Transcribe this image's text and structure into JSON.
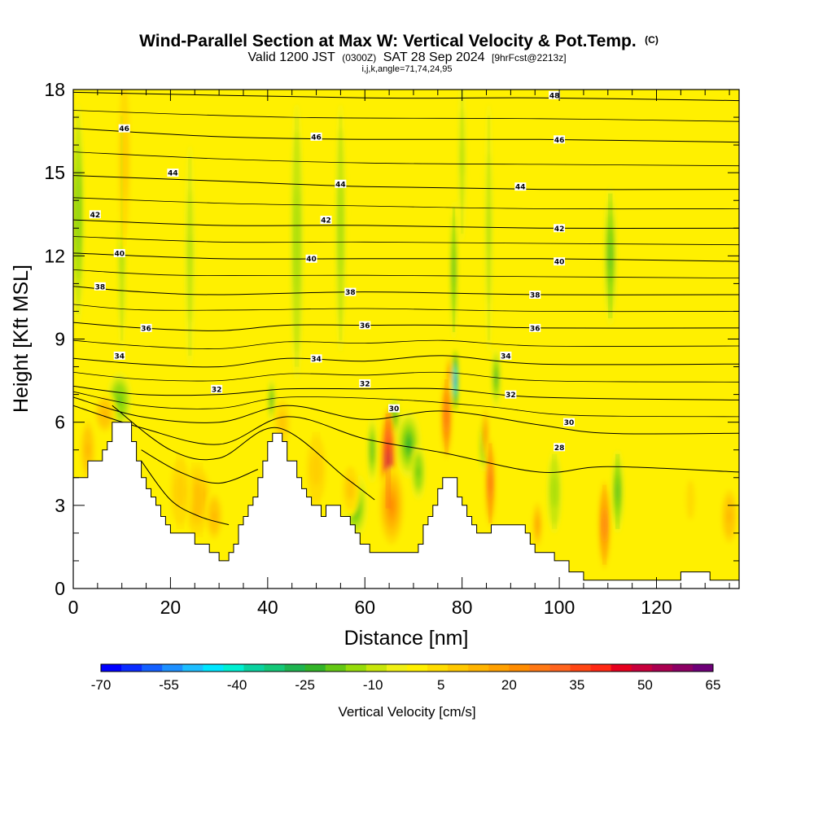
{
  "header": {
    "title": "Wind-Parallel Section at Max W: Vertical Velocity & Pot.Temp.",
    "copyright": "(C)",
    "valid_prefix": "Valid 1200 JST",
    "valid_utc": "(0300Z)",
    "valid_date": "SAT 28 Sep 2024",
    "forecast": "[9hrFcst@2213z]",
    "indices": "i,j,k,angle=71,74,24,95"
  },
  "colorbar": {
    "title": "Vertical Velocity [cm/s]",
    "min": -70,
    "max": 65,
    "step": 5,
    "labels": [
      "-70",
      "-55",
      "-40",
      "-25",
      "-10",
      "5",
      "20",
      "35",
      "50",
      "65"
    ],
    "colors": [
      "#0000ff",
      "#0a2cff",
      "#1460ff",
      "#1e90ff",
      "#1ebeff",
      "#00e6ff",
      "#00f0d2",
      "#0ad2a0",
      "#14c878",
      "#1eb450",
      "#32b428",
      "#64c814",
      "#96dc0a",
      "#c8e60a",
      "#f0f014",
      "#fff000",
      "#ffdc00",
      "#ffc800",
      "#ffb400",
      "#ffa000",
      "#ff8c00",
      "#ff7814",
      "#ff641e",
      "#ff4614",
      "#ff2814",
      "#e6001e",
      "#c8003c",
      "#aa0050",
      "#8c0064",
      "#6e0078"
    ]
  },
  "chart_data": {
    "type": "heatmap",
    "title": "Wind-Parallel Section at Max W: Vertical Velocity & Pot.Temp.",
    "xlabel": "Distance [nm]",
    "ylabel": "Height [Kft MSL]",
    "xlim": [
      0,
      137
    ],
    "ylim": [
      0,
      18
    ],
    "x_major_ticks": [
      0,
      20,
      40,
      60,
      80,
      100,
      120
    ],
    "x_minor_step": 5,
    "y_major_ticks": [
      0,
      3,
      6,
      9,
      12,
      15,
      18
    ],
    "y_minor_step": 1,
    "field": "Vertical Velocity [cm/s]",
    "background_value": 5,
    "terrain": [
      [
        0,
        4.0
      ],
      [
        2,
        4.0
      ],
      [
        3,
        4.6
      ],
      [
        5,
        4.6
      ],
      [
        6,
        5.0
      ],
      [
        7,
        5.3
      ],
      [
        8,
        6.0
      ],
      [
        11,
        6.0
      ],
      [
        12,
        5.3
      ],
      [
        13,
        4.6
      ],
      [
        14,
        4.0
      ],
      [
        15,
        3.6
      ],
      [
        16,
        3.3
      ],
      [
        17,
        3.0
      ],
      [
        18,
        2.6
      ],
      [
        19,
        2.3
      ],
      [
        20,
        2.0
      ],
      [
        24,
        2.0
      ],
      [
        25,
        1.6
      ],
      [
        27,
        1.6
      ],
      [
        28,
        1.3
      ],
      [
        29,
        1.3
      ],
      [
        30,
        1.0
      ],
      [
        31,
        1.0
      ],
      [
        32,
        1.3
      ],
      [
        33,
        1.6
      ],
      [
        34,
        2.3
      ],
      [
        35,
        2.6
      ],
      [
        36,
        3.0
      ],
      [
        37,
        3.3
      ],
      [
        38,
        4.0
      ],
      [
        39,
        4.6
      ],
      [
        40,
        5.3
      ],
      [
        41,
        5.6
      ],
      [
        42,
        5.6
      ],
      [
        43,
        5.3
      ],
      [
        44,
        4.6
      ],
      [
        46,
        4.0
      ],
      [
        47,
        3.6
      ],
      [
        48,
        3.3
      ],
      [
        49,
        3.0
      ],
      [
        50,
        3.0
      ],
      [
        51,
        2.6
      ],
      [
        52,
        3.0
      ],
      [
        54,
        3.0
      ],
      [
        55,
        2.6
      ],
      [
        57,
        2.3
      ],
      [
        58,
        2.0
      ],
      [
        59,
        1.6
      ],
      [
        60,
        1.6
      ],
      [
        61,
        1.3
      ],
      [
        70,
        1.3
      ],
      [
        71,
        1.6
      ],
      [
        72,
        2.3
      ],
      [
        73,
        2.6
      ],
      [
        74,
        3.0
      ],
      [
        75,
        3.6
      ],
      [
        76,
        4.0
      ],
      [
        78,
        4.0
      ],
      [
        79,
        3.3
      ],
      [
        80,
        3.0
      ],
      [
        81,
        2.6
      ],
      [
        82,
        2.3
      ],
      [
        83,
        2.0
      ],
      [
        85,
        2.0
      ],
      [
        86,
        2.3
      ],
      [
        90,
        2.3
      ],
      [
        93,
        2.0
      ],
      [
        94,
        1.6
      ],
      [
        95,
        1.3
      ],
      [
        97,
        1.3
      ],
      [
        99,
        1.0
      ],
      [
        100,
        1.0
      ],
      [
        102,
        0.6
      ],
      [
        104,
        0.6
      ],
      [
        105,
        0.3
      ],
      [
        124,
        0.3
      ],
      [
        125,
        0.6
      ],
      [
        130,
        0.6
      ],
      [
        131,
        0.3
      ],
      [
        137,
        0.3
      ]
    ],
    "updrafts": [
      {
        "x": 3,
        "y": 5.0,
        "dx": 1.8,
        "dy": 1.3,
        "value": 22
      },
      {
        "x": 6.5,
        "y": 6.3,
        "dx": 2.4,
        "dy": 0.8,
        "value": 22
      },
      {
        "x": 10.5,
        "y": 15.5,
        "dx": 1.5,
        "dy": 3.5,
        "value": 18
      },
      {
        "x": 25.5,
        "y": 3.2,
        "dx": 3.5,
        "dy": 1.5,
        "value": 24
      },
      {
        "x": 22,
        "y": 3.5,
        "dx": 2.5,
        "dy": 1.5,
        "value": 18
      },
      {
        "x": 29,
        "y": 2.6,
        "dx": 2.0,
        "dy": 1.0,
        "value": 22
      },
      {
        "x": 43,
        "y": 6.0,
        "dx": 2.0,
        "dy": 1.0,
        "value": 18
      },
      {
        "x": 50,
        "y": 4.3,
        "dx": 2.5,
        "dy": 1.5,
        "value": 18
      },
      {
        "x": 57,
        "y": 3.6,
        "dx": 2.0,
        "dy": 1.0,
        "value": 18
      },
      {
        "x": 64.8,
        "y": 4.6,
        "dx": 1.6,
        "dy": 1.9,
        "value": 68
      },
      {
        "x": 65.5,
        "y": 3.0,
        "dx": 2.5,
        "dy": 1.4,
        "value": 32
      },
      {
        "x": 76.8,
        "y": 6.2,
        "dx": 1.2,
        "dy": 1.5,
        "value": 48
      },
      {
        "x": 77.3,
        "y": 7.8,
        "dx": 0.5,
        "dy": 0.6,
        "value": 38
      },
      {
        "x": 85.8,
        "y": 3.8,
        "dx": 1.1,
        "dy": 1.6,
        "value": 46
      },
      {
        "x": 84.8,
        "y": 5.6,
        "dx": 0.7,
        "dy": 0.9,
        "value": 32
      },
      {
        "x": 95.5,
        "y": 2.3,
        "dx": 1.3,
        "dy": 1.0,
        "value": 26
      },
      {
        "x": 109.3,
        "y": 2.3,
        "dx": 1.3,
        "dy": 1.6,
        "value": 44
      },
      {
        "x": 135,
        "y": 2.6,
        "dx": 2.0,
        "dy": 1.2,
        "value": 22
      },
      {
        "x": 127,
        "y": 3.2,
        "dx": 1.5,
        "dy": 1.2,
        "value": 14
      }
    ],
    "downdrafts": [
      {
        "x": 1,
        "y": 13.5,
        "dx": 1.2,
        "dy": 4.0,
        "value": -14
      },
      {
        "x": 9.5,
        "y": 6.8,
        "dx": 2.5,
        "dy": 1.0,
        "value": -12
      },
      {
        "x": 10,
        "y": 13.0,
        "dx": 0.8,
        "dy": 4.5,
        "value": -8
      },
      {
        "x": 24,
        "y": 12.0,
        "dx": 1.0,
        "dy": 4.0,
        "value": -6
      },
      {
        "x": 40.8,
        "y": 6.8,
        "dx": 0.8,
        "dy": 0.8,
        "value": -18
      },
      {
        "x": 46,
        "y": 12.5,
        "dx": 1.3,
        "dy": 5.0,
        "value": -10
      },
      {
        "x": 55,
        "y": 13.0,
        "dx": 1.0,
        "dy": 4.5,
        "value": -8
      },
      {
        "x": 58,
        "y": 3.0,
        "dx": 2.5,
        "dy": 1.2,
        "value": -18
      },
      {
        "x": 61.5,
        "y": 5.0,
        "dx": 1.0,
        "dy": 1.2,
        "value": -15
      },
      {
        "x": 66,
        "y": 6.2,
        "dx": 1.3,
        "dy": 0.7,
        "value": -14
      },
      {
        "x": 69,
        "y": 5.2,
        "dx": 2.5,
        "dy": 1.2,
        "value": -18
      },
      {
        "x": 71,
        "y": 4.2,
        "dx": 1.5,
        "dy": 1.0,
        "value": -12
      },
      {
        "x": 78.6,
        "y": 7.5,
        "dx": 0.6,
        "dy": 1.1,
        "value": -55
      },
      {
        "x": 78.3,
        "y": 11.5,
        "dx": 0.8,
        "dy": 2.5,
        "value": -16
      },
      {
        "x": 80,
        "y": 15.5,
        "dx": 0.8,
        "dy": 3.0,
        "value": -6
      },
      {
        "x": 84.3,
        "y": 5.2,
        "dx": 0.8,
        "dy": 1.0,
        "value": -20
      },
      {
        "x": 87,
        "y": 7.6,
        "dx": 1.0,
        "dy": 1.1,
        "value": -16
      },
      {
        "x": 85.5,
        "y": 13.0,
        "dx": 0.8,
        "dy": 4.5,
        "value": -6
      },
      {
        "x": 110.5,
        "y": 12.0,
        "dx": 1.3,
        "dy": 2.5,
        "value": -16
      },
      {
        "x": 112,
        "y": 3.5,
        "dx": 1.3,
        "dy": 1.5,
        "value": -16
      },
      {
        "x": 99,
        "y": 3.5,
        "dx": 1.5,
        "dy": 1.5,
        "value": -10
      }
    ],
    "theta_contours": {
      "levels": [
        22,
        24,
        26,
        28,
        30,
        32,
        34,
        36,
        38,
        40,
        42,
        44,
        46,
        48
      ],
      "series": [
        {
          "level": 22,
          "points": [
            [
              14,
              4.6
            ],
            [
              20,
              3.2
            ],
            [
              26,
              2.6
            ],
            [
              32,
              2.3
            ]
          ]
        },
        {
          "level": 24,
          "points": [
            [
              14,
              5.0
            ],
            [
              22,
              4.2
            ],
            [
              30,
              3.8
            ],
            [
              38,
              4.3
            ]
          ]
        },
        {
          "level": 26,
          "points": [
            [
              8,
              6.6
            ],
            [
              20,
              5.0
            ],
            [
              30,
              4.7
            ],
            [
              42,
              5.8
            ],
            [
              56,
              4.0
            ],
            [
              62,
              3.2
            ]
          ]
        },
        {
          "level": 28,
          "points": [
            [
              0,
              6.6
            ],
            [
              14,
              5.8
            ],
            [
              30,
              5.2
            ],
            [
              44,
              6.2
            ],
            [
              60,
              5.4
            ],
            [
              76,
              4.9
            ],
            [
              96,
              4.2
            ],
            [
              110,
              4.4
            ],
            [
              137,
              4.2
            ]
          ]
        },
        {
          "level": 30,
          "points": [
            [
              0,
              6.9
            ],
            [
              14,
              6.2
            ],
            [
              30,
              6.0
            ],
            [
              44,
              6.6
            ],
            [
              60,
              6.1
            ],
            [
              76,
              6.4
            ],
            [
              96,
              5.9
            ],
            [
              110,
              5.6
            ],
            [
              137,
              5.6
            ]
          ]
        },
        {
          "level": 32,
          "points": [
            [
              0,
              7.3
            ],
            [
              14,
              7.0
            ],
            [
              30,
              7.0
            ],
            [
              44,
              7.2
            ],
            [
              60,
              7.2
            ],
            [
              76,
              7.2
            ],
            [
              96,
              6.9
            ],
            [
              137,
              6.8
            ]
          ]
        },
        {
          "level": 34,
          "points": [
            [
              0,
              8.3
            ],
            [
              14,
              8.1
            ],
            [
              30,
              8.0
            ],
            [
              44,
              8.3
            ],
            [
              60,
              8.2
            ],
            [
              76,
              8.4
            ],
            [
              96,
              8.1
            ],
            [
              137,
              8.1
            ]
          ]
        },
        {
          "level": 36,
          "points": [
            [
              0,
              9.6
            ],
            [
              14,
              9.4
            ],
            [
              30,
              9.3
            ],
            [
              44,
              9.5
            ],
            [
              60,
              9.5
            ],
            [
              76,
              9.5
            ],
            [
              96,
              9.4
            ],
            [
              137,
              9.4
            ]
          ]
        },
        {
          "level": 38,
          "points": [
            [
              0,
              10.9
            ],
            [
              14,
              10.7
            ],
            [
              30,
              10.6
            ],
            [
              60,
              10.7
            ],
            [
              96,
              10.6
            ],
            [
              137,
              10.6
            ]
          ]
        },
        {
          "level": 40,
          "points": [
            [
              0,
              12.1
            ],
            [
              30,
              11.9
            ],
            [
              60,
              11.9
            ],
            [
              96,
              11.9
            ],
            [
              137,
              11.8
            ]
          ]
        },
        {
          "level": 42,
          "points": [
            [
              0,
              13.3
            ],
            [
              30,
              13.1
            ],
            [
              60,
              13.1
            ],
            [
              96,
              13.0
            ],
            [
              137,
              13.0
            ]
          ]
        },
        {
          "level": 44,
          "points": [
            [
              0,
              14.9
            ],
            [
              30,
              14.7
            ],
            [
              60,
              14.5
            ],
            [
              96,
              14.4
            ],
            [
              137,
              14.4
            ]
          ]
        },
        {
          "level": 46,
          "points": [
            [
              0,
              16.6
            ],
            [
              30,
              16.3
            ],
            [
              60,
              16.2
            ],
            [
              96,
              16.2
            ],
            [
              137,
              16.1
            ]
          ]
        },
        {
          "level": 48,
          "points": [
            [
              0,
              17.9
            ],
            [
              60,
              17.7
            ],
            [
              96,
              17.7
            ],
            [
              137,
              17.6
            ]
          ]
        }
      ],
      "labels": [
        {
          "text": "46",
          "x": 10.5,
          "y": 16.6
        },
        {
          "text": "46",
          "x": 50,
          "y": 16.3
        },
        {
          "text": "46",
          "x": 100,
          "y": 16.2
        },
        {
          "text": "48",
          "x": 99,
          "y": 17.8
        },
        {
          "text": "44",
          "x": 20.5,
          "y": 15.0
        },
        {
          "text": "44",
          "x": 55,
          "y": 14.6
        },
        {
          "text": "44",
          "x": 92,
          "y": 14.5
        },
        {
          "text": "42",
          "x": 4.5,
          "y": 13.5
        },
        {
          "text": "42",
          "x": 52,
          "y": 13.3
        },
        {
          "text": "42",
          "x": 100,
          "y": 13.0
        },
        {
          "text": "40",
          "x": 9.5,
          "y": 12.1
        },
        {
          "text": "40",
          "x": 49,
          "y": 11.9
        },
        {
          "text": "40",
          "x": 100,
          "y": 11.8
        },
        {
          "text": "38",
          "x": 5.5,
          "y": 10.9
        },
        {
          "text": "38",
          "x": 57,
          "y": 10.7
        },
        {
          "text": "38",
          "x": 95,
          "y": 10.6
        },
        {
          "text": "36",
          "x": 15,
          "y": 9.4
        },
        {
          "text": "36",
          "x": 60,
          "y": 9.5
        },
        {
          "text": "36",
          "x": 95,
          "y": 9.4
        },
        {
          "text": "34",
          "x": 9.5,
          "y": 8.4
        },
        {
          "text": "34",
          "x": 50,
          "y": 8.3
        },
        {
          "text": "34",
          "x": 89,
          "y": 8.4
        },
        {
          "text": "32",
          "x": 29.5,
          "y": 7.2
        },
        {
          "text": "32",
          "x": 60,
          "y": 7.4
        },
        {
          "text": "32",
          "x": 90,
          "y": 7.0
        },
        {
          "text": "30",
          "x": 66,
          "y": 6.5
        },
        {
          "text": "30",
          "x": 102,
          "y": 6.0
        },
        {
          "text": "28",
          "x": 100,
          "y": 5.1
        }
      ]
    }
  }
}
